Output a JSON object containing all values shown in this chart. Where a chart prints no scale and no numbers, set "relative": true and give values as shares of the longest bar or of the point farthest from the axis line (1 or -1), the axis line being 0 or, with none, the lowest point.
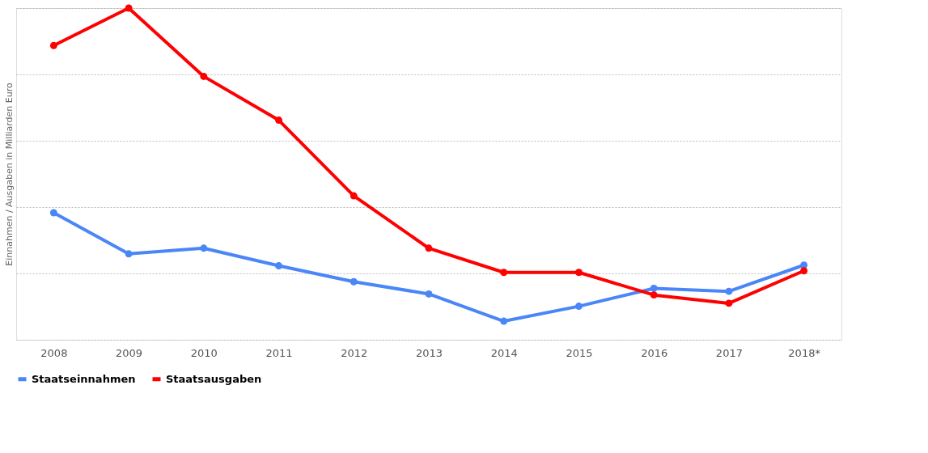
{
  "chart_data": {
    "type": "line",
    "relative": true,
    "ylabel": "Einnahmen / Ausgaben in Milliarden Euro",
    "categories": [
      "2008",
      "2009",
      "2010",
      "2011",
      "2012",
      "2013",
      "2014",
      "2015",
      "2016",
      "2017",
      "2018*"
    ],
    "series": [
      {
        "name": "Staatseinnahmen",
        "color": "#4a86f7",
        "values": [
          0.383,
          0.259,
          0.276,
          0.223,
          0.175,
          0.138,
          0.056,
          0.101,
          0.155,
          0.146,
          0.225
        ]
      },
      {
        "name": "Staatsausgaben",
        "color": "#ff0000",
        "values": [
          0.887,
          1,
          0.794,
          0.662,
          0.434,
          0.276,
          0.203,
          0.203,
          0.135,
          0.11,
          0.208
        ]
      }
    ],
    "grid": "y",
    "legend": "bottom",
    "marker": "circle",
    "line_style": "solid"
  }
}
